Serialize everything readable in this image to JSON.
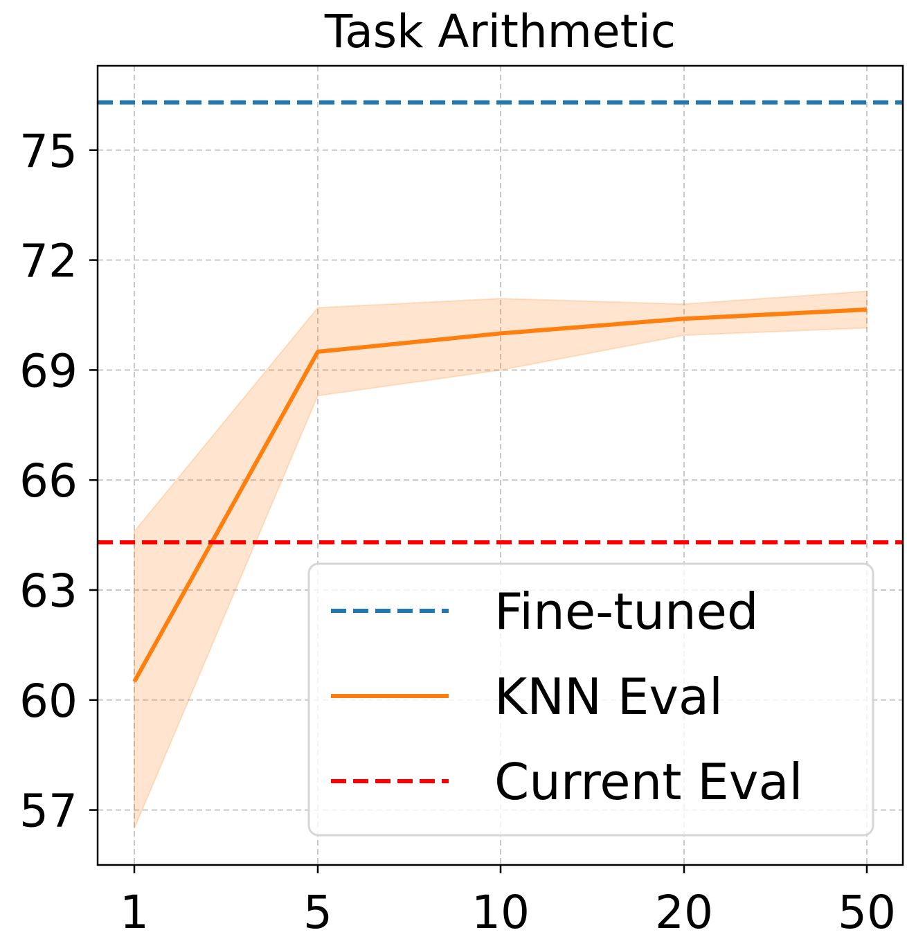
{
  "chart_data": {
    "type": "line",
    "title": "Task Arithmetic",
    "xlabel": "",
    "ylabel": "",
    "x_categories": [
      "1",
      "5",
      "10",
      "20",
      "50"
    ],
    "y_ticks": [
      57,
      60,
      63,
      66,
      69,
      72,
      75
    ],
    "ylim": [
      55.5,
      77.3
    ],
    "grid": true,
    "legend_position": "lower-right",
    "series": [
      {
        "name": "Fine-tuned",
        "style": "dashed",
        "color": "#1f77b4",
        "constant": 76.3
      },
      {
        "name": "KNN Eval",
        "style": "solid",
        "color": "#ff7f0e",
        "values": [
          60.5,
          69.5,
          70.0,
          70.4,
          70.65
        ],
        "band_lower": [
          56.5,
          68.3,
          69.0,
          69.95,
          70.15
        ],
        "band_upper": [
          64.6,
          70.7,
          70.95,
          70.8,
          71.15
        ]
      },
      {
        "name": "Current Eval",
        "style": "dashed",
        "color": "#ff0000",
        "constant": 64.3
      }
    ]
  }
}
